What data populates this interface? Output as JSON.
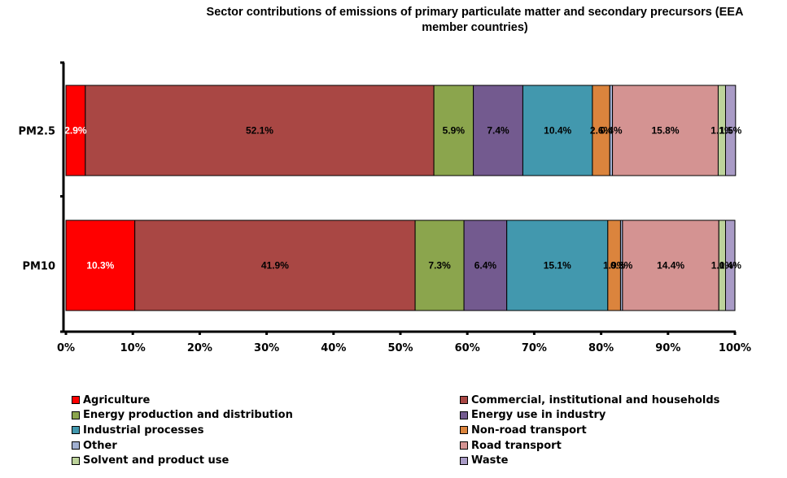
{
  "chart_data": {
    "type": "bar",
    "orientation": "horizontal",
    "stacked": "percent",
    "title": "Sector contributions of emissions of primary particulate matter and secondary precursors (EEA member countries)",
    "title_lines": [
      "Sector contributions of emissions of primary particulate matter and secondary precursors (EEA",
      "member countries)"
    ],
    "xlabel": "",
    "ylabel": "",
    "xlim": [
      0,
      100
    ],
    "x_ticks": [
      "0%",
      "10%",
      "20%",
      "30%",
      "40%",
      "50%",
      "60%",
      "70%",
      "80%",
      "90%",
      "100%"
    ],
    "categories": [
      "PM2.5",
      "PM10"
    ],
    "grid": false,
    "legend_position": "bottom",
    "series": [
      {
        "name": "Agriculture",
        "color": "#FF0000",
        "label_color": "#ffffff",
        "values": [
          2.9,
          10.3
        ],
        "labels": [
          "2.9%",
          "10.3%"
        ]
      },
      {
        "name": "Commercial, institutional and households",
        "color": "#A94744",
        "label_color": "#000000",
        "values": [
          52.1,
          41.9
        ],
        "labels": [
          "52.1%",
          "41.9%"
        ]
      },
      {
        "name": "Energy production and distribution",
        "color": "#8BA54D",
        "label_color": "#000000",
        "values": [
          5.9,
          7.3
        ],
        "labels": [
          "5.9%",
          "7.3%"
        ]
      },
      {
        "name": "Energy use in industry",
        "color": "#735A8F",
        "label_color": "#000000",
        "values": [
          7.4,
          6.4
        ],
        "labels": [
          "7.4%",
          "6.4%"
        ]
      },
      {
        "name": "Industrial processes",
        "color": "#4298AE",
        "label_color": "#000000",
        "values": [
          10.4,
          15.1
        ],
        "labels": [
          "10.4%",
          "15.1%"
        ]
      },
      {
        "name": "Non-road transport",
        "color": "#DB843D",
        "label_color": "#000000",
        "values": [
          2.6,
          1.9
        ],
        "labels": [
          "2.6%",
          "1.9%"
        ]
      },
      {
        "name": "Other",
        "color": "#A1B0D1",
        "label_color": "#000000",
        "values": [
          0.4,
          0.3
        ],
        "labels": [
          "0.4%",
          "0.3%"
        ]
      },
      {
        "name": "Road transport",
        "color": "#D49392",
        "label_color": "#000000",
        "values": [
          15.8,
          14.4
        ],
        "labels": [
          "15.8%",
          "14.4%"
        ]
      },
      {
        "name": "Solvent and product use",
        "color": "#BDD39B",
        "label_color": "#000000",
        "values": [
          1.1,
          1.0
        ],
        "labels": [
          "1.1%",
          "1.0%"
        ]
      },
      {
        "name": "Waste",
        "color": "#A99BC6",
        "label_color": "#000000",
        "values": [
          1.5,
          1.4
        ],
        "labels": [
          "1.5%",
          "1.4%"
        ]
      }
    ]
  }
}
